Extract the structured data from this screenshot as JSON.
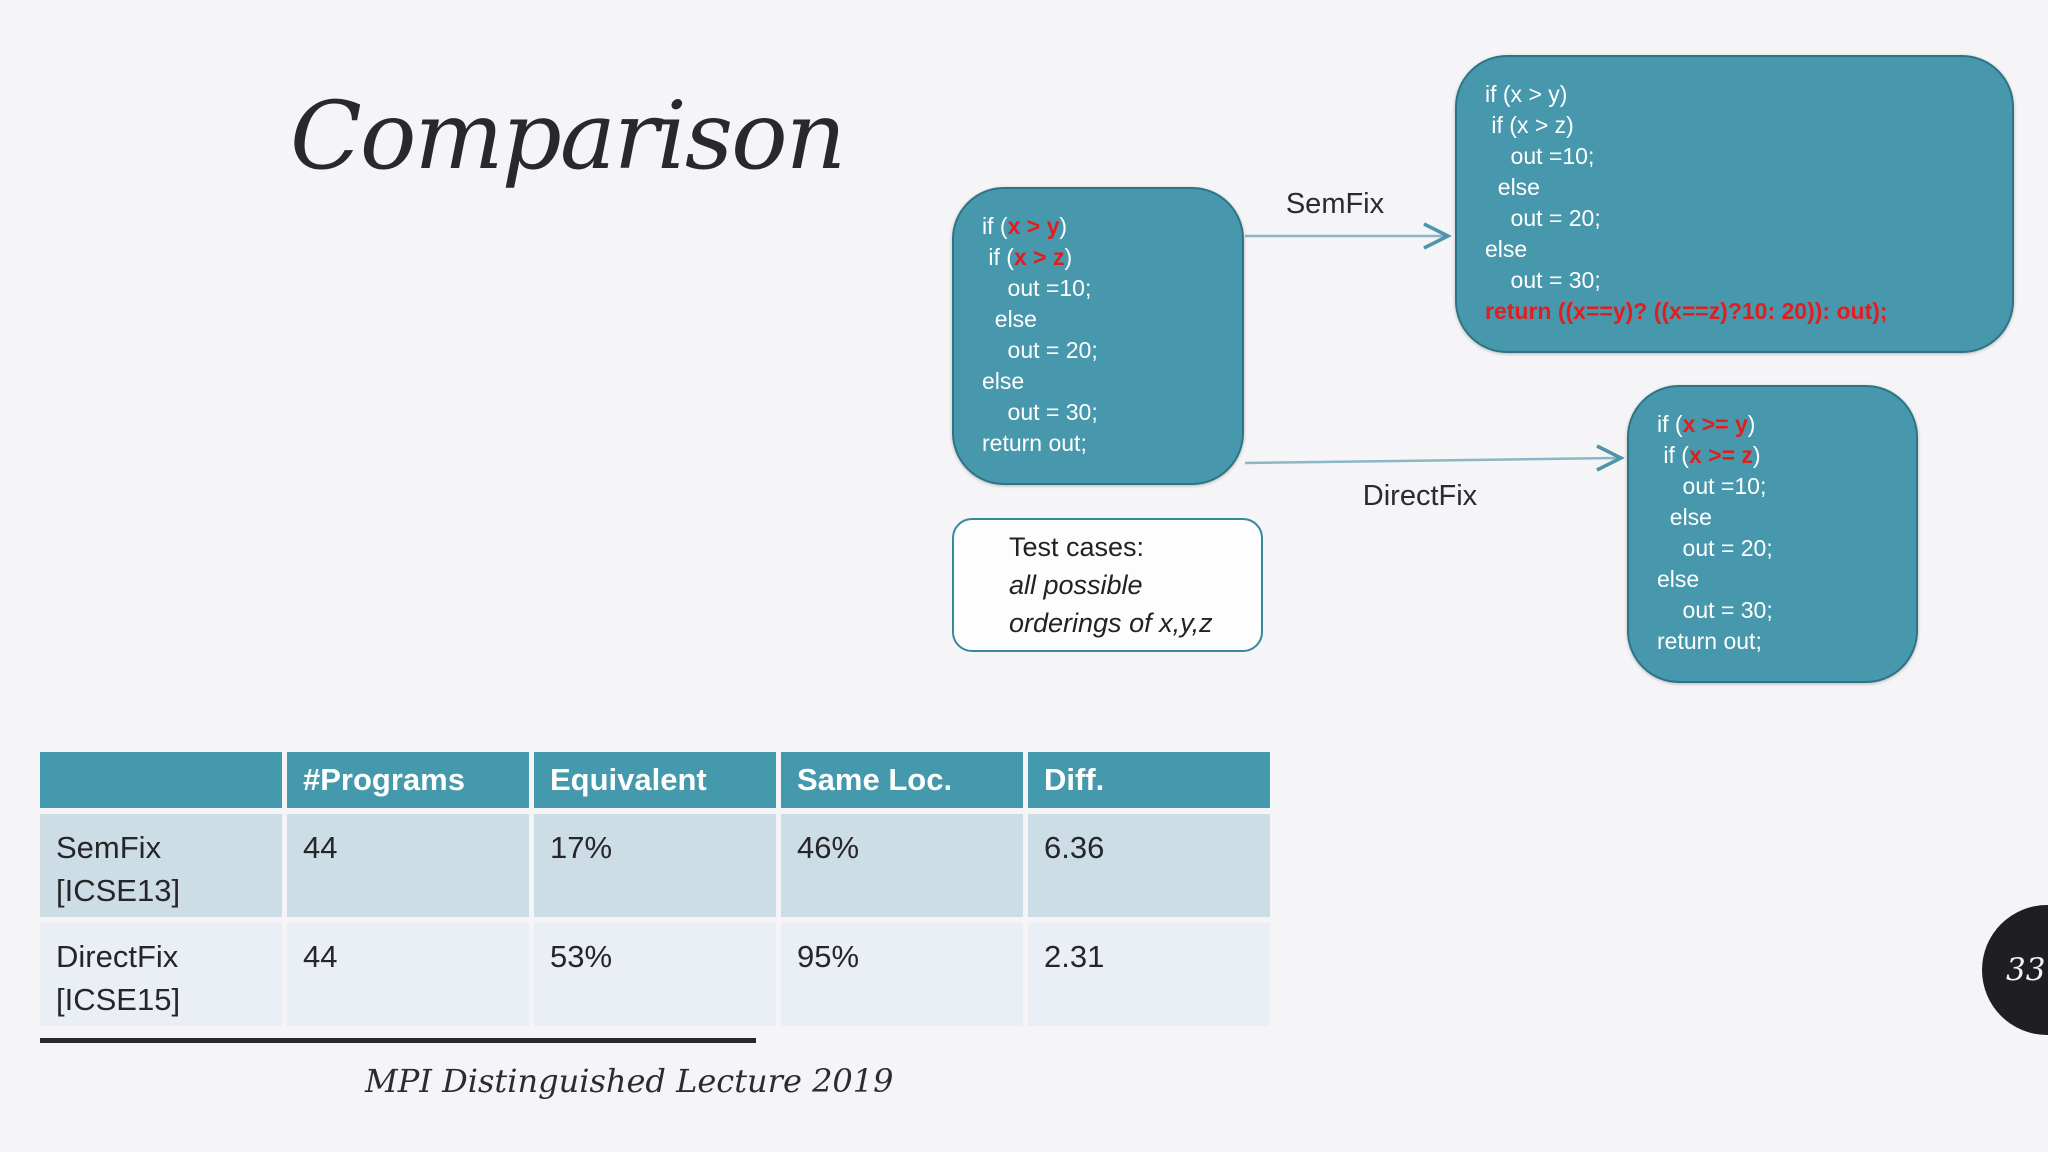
{
  "slide": {
    "title": "Comparison",
    "footer_caption": "MPI Distinguished Lecture 2019",
    "page_number": "33"
  },
  "diagram": {
    "semfix_arrow_label": "SemFix",
    "directfix_arrow_label": "DirectFix",
    "test_cases": {
      "title": "Test cases:",
      "line2": "all possible",
      "line3": "orderings of x,y,z"
    },
    "code_boxes": {
      "buggy": [
        [
          [
            "if (",
            ""
          ],
          [
            "x > y",
            "r"
          ],
          [
            ")",
            ""
          ]
        ],
        [
          [
            " if (",
            ""
          ],
          [
            "x > z",
            "r"
          ],
          [
            ")",
            ""
          ]
        ],
        [
          [
            "    out =10;",
            ""
          ]
        ],
        [
          [
            "  else",
            ""
          ]
        ],
        [
          [
            "    out = 20;",
            ""
          ]
        ],
        [
          [
            "else",
            ""
          ]
        ],
        [
          [
            "    out = 30;",
            ""
          ]
        ],
        [
          [
            "return out;",
            ""
          ]
        ]
      ],
      "semfix_result": [
        [
          [
            "if (x > y)",
            ""
          ]
        ],
        [
          [
            " if (x > z)",
            ""
          ]
        ],
        [
          [
            "    out =10;",
            ""
          ]
        ],
        [
          [
            "  else",
            ""
          ]
        ],
        [
          [
            "    out = 20;",
            ""
          ]
        ],
        [
          [
            "else",
            ""
          ]
        ],
        [
          [
            "    out = 30;",
            ""
          ]
        ],
        [
          [
            "return ((x==y)? ((x==z)?10: 20)): out);",
            "r"
          ]
        ]
      ],
      "directfix_result": [
        [
          [
            "if (",
            ""
          ],
          [
            "x >= y",
            "r"
          ],
          [
            ")",
            ""
          ]
        ],
        [
          [
            " if (",
            ""
          ],
          [
            "x >= z",
            "r"
          ],
          [
            ")",
            ""
          ]
        ],
        [
          [
            "    out =10;",
            ""
          ]
        ],
        [
          [
            "  else",
            ""
          ]
        ],
        [
          [
            "    out = 20;",
            ""
          ]
        ],
        [
          [
            "else",
            ""
          ]
        ],
        [
          [
            "    out = 30;",
            ""
          ]
        ],
        [
          [
            "return out;",
            ""
          ]
        ]
      ]
    }
  },
  "table": {
    "headers": [
      "",
      "#Programs",
      "Equivalent",
      "Same Loc.",
      "Diff."
    ],
    "rows": [
      {
        "label_line1": "SemFix",
        "label_line2": "[ICSE13]",
        "values": [
          "44",
          "17%",
          "46%",
          "6.36"
        ]
      },
      {
        "label_line1": "DirectFix",
        "label_line2": "[ICSE15]",
        "values": [
          "44",
          "53%",
          "95%",
          "2.31"
        ]
      }
    ]
  },
  "colors": {
    "slide_background": "#f5f4f6",
    "code_box_fill": "#4798ad",
    "code_box_border": "#2d7487",
    "code_highlight_red": "#e11d1d",
    "arrow_line": "#8ab6c6",
    "arrow_head": "#4f94ab",
    "table_header_bg": "#4599ac",
    "table_row1_bg": "#cddde5",
    "table_row2_bg": "#eaeef5",
    "page_badge_bg": "#1f1e23"
  }
}
